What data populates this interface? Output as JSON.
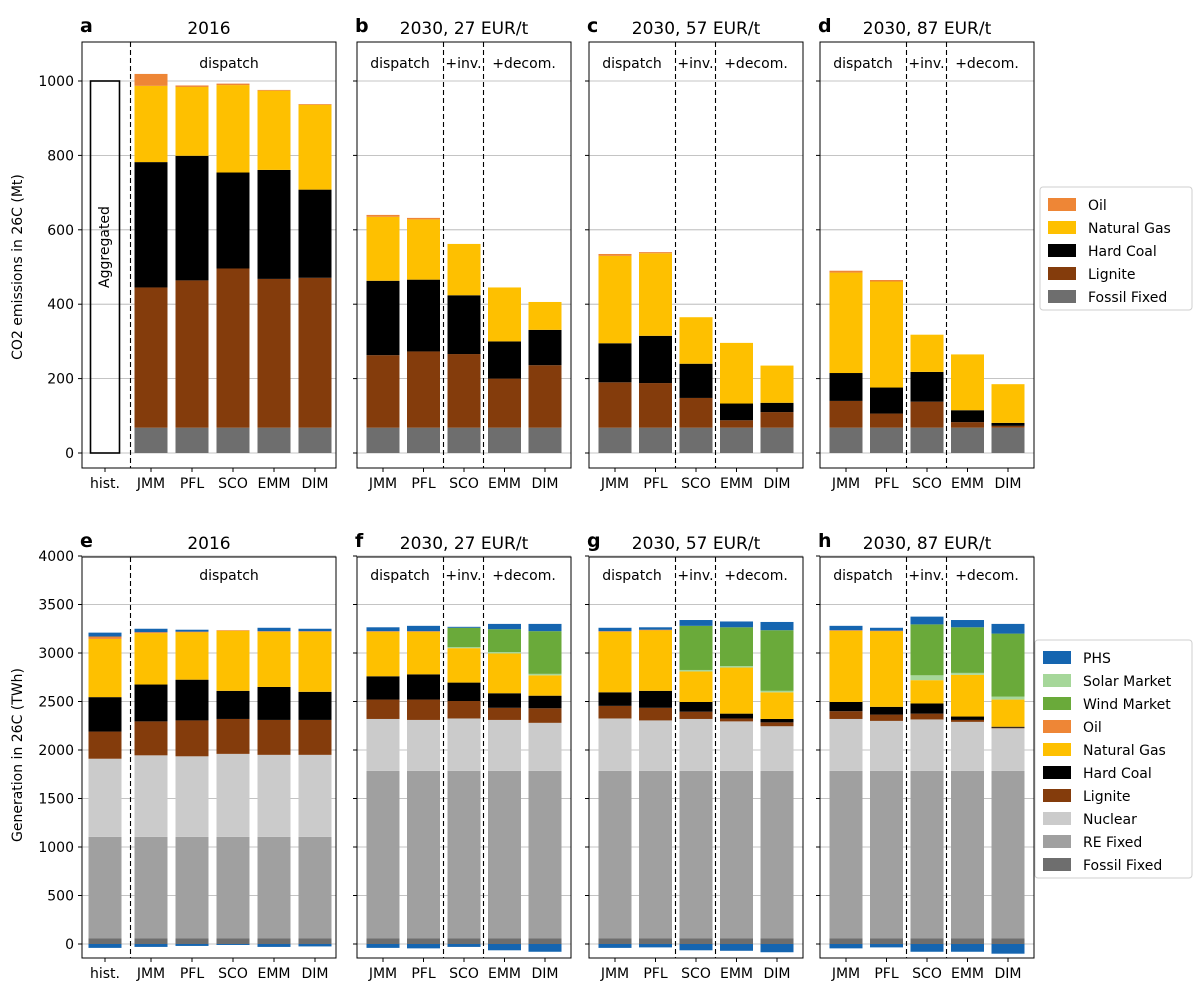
{
  "figure": {
    "top_ylabel": "CO2 emissions in 26C (Mt)",
    "bottom_ylabel": "Generation in 26C (TWh)"
  },
  "colors": {
    "PHS": "#1565b0",
    "Solar Market": "#a6d79a",
    "Wind Market": "#6aaa3a",
    "Oil": "#ee8636",
    "Natural Gas": "#fec000",
    "Hard Coal": "#000000",
    "Lignite": "#843c0c",
    "Nuclear": "#cbcbcb",
    "RE Fixed": "#a0a0a0",
    "Fossil Fixed": "#6e6e6e"
  },
  "legends": {
    "top": [
      "Oil",
      "Natural Gas",
      "Hard Coal",
      "Lignite",
      "Fossil Fixed"
    ],
    "bottom": [
      "PHS",
      "Solar Market",
      "Wind Market",
      "Oil",
      "Natural Gas",
      "Hard Coal",
      "Lignite",
      "Nuclear",
      "RE Fixed",
      "Fossil Fixed"
    ]
  },
  "chart_data": [
    {
      "type": "bar",
      "stacked": true,
      "letter": "a",
      "title": "2016",
      "ylabel": "CO2 emissions in 26C (Mt)",
      "ylim": [
        0,
        1100
      ],
      "yticks": [
        0,
        200,
        400,
        600,
        800,
        1000
      ],
      "grid": true,
      "legend": "right",
      "categories": [
        "hist.",
        "JMM",
        "PFL",
        "SCO",
        "EMM",
        "DIM"
      ],
      "section_labels": [
        "dispatch"
      ],
      "hist_bar": {
        "label": "Aggregated",
        "value": 1000
      },
      "series": [
        {
          "name": "Fossil Fixed",
          "values": [
            null,
            68,
            68,
            68,
            68,
            68
          ]
        },
        {
          "name": "Lignite",
          "values": [
            null,
            377,
            396,
            428,
            400,
            403
          ]
        },
        {
          "name": "Hard Coal",
          "values": [
            null,
            337,
            335,
            258,
            293,
            237
          ]
        },
        {
          "name": "Natural Gas",
          "values": [
            null,
            205,
            185,
            235,
            213,
            228
          ]
        },
        {
          "name": "Oil",
          "values": [
            null,
            32,
            4,
            4,
            2,
            2
          ]
        }
      ]
    },
    {
      "type": "bar",
      "stacked": true,
      "letter": "b",
      "title": "2030, 27 EUR/t",
      "ylim": [
        0,
        1100
      ],
      "yticks": [
        0,
        200,
        400,
        600,
        800,
        1000
      ],
      "grid": true,
      "categories": [
        "JMM",
        "PFL",
        "SCO",
        "EMM",
        "DIM"
      ],
      "section_labels": [
        "dispatch",
        "+inv.",
        "+decom."
      ],
      "series": [
        {
          "name": "Fossil Fixed",
          "values": [
            68,
            68,
            68,
            68,
            68
          ]
        },
        {
          "name": "Lignite",
          "values": [
            195,
            205,
            198,
            132,
            168
          ]
        },
        {
          "name": "Hard Coal",
          "values": [
            200,
            193,
            158,
            100,
            95
          ]
        },
        {
          "name": "Natural Gas",
          "values": [
            172,
            162,
            138,
            145,
            75
          ]
        },
        {
          "name": "Oil",
          "values": [
            5,
            4,
            0,
            0,
            0
          ]
        }
      ]
    },
    {
      "type": "bar",
      "stacked": true,
      "letter": "c",
      "title": "2030, 57 EUR/t",
      "ylim": [
        0,
        1100
      ],
      "yticks": [
        0,
        200,
        400,
        600,
        800,
        1000
      ],
      "grid": true,
      "categories": [
        "JMM",
        "PFL",
        "SCO",
        "EMM",
        "DIM"
      ],
      "section_labels": [
        "dispatch",
        "+inv.",
        "+decom."
      ],
      "series": [
        {
          "name": "Fossil Fixed",
          "values": [
            68,
            68,
            68,
            68,
            68
          ]
        },
        {
          "name": "Lignite",
          "values": [
            122,
            120,
            80,
            20,
            42
          ]
        },
        {
          "name": "Hard Coal",
          "values": [
            105,
            127,
            92,
            45,
            25
          ]
        },
        {
          "name": "Natural Gas",
          "values": [
            235,
            222,
            125,
            163,
            100
          ]
        },
        {
          "name": "Oil",
          "values": [
            5,
            3,
            0,
            0,
            0
          ]
        }
      ]
    },
    {
      "type": "bar",
      "stacked": true,
      "letter": "d",
      "title": "2030, 87 EUR/t",
      "ylim": [
        0,
        1100
      ],
      "yticks": [
        0,
        200,
        400,
        600,
        800,
        1000
      ],
      "grid": true,
      "categories": [
        "JMM",
        "PFL",
        "SCO",
        "EMM",
        "DIM"
      ],
      "section_labels": [
        "dispatch",
        "+inv.",
        "+decom."
      ],
      "series": [
        {
          "name": "Fossil Fixed",
          "values": [
            68,
            68,
            68,
            68,
            68
          ]
        },
        {
          "name": "Lignite",
          "values": [
            72,
            38,
            70,
            15,
            5
          ]
        },
        {
          "name": "Hard Coal",
          "values": [
            75,
            70,
            80,
            32,
            8
          ]
        },
        {
          "name": "Natural Gas",
          "values": [
            270,
            285,
            100,
            150,
            104
          ]
        },
        {
          "name": "Oil",
          "values": [
            5,
            4,
            0,
            0,
            0
          ]
        }
      ]
    },
    {
      "type": "bar",
      "stacked": true,
      "letter": "e",
      "title": "2016",
      "ylabel": "Generation in 26C (TWh)",
      "ylim": [
        -150,
        4000
      ],
      "yticks": [
        0,
        500,
        1000,
        1500,
        2000,
        2500,
        3000,
        3500,
        4000
      ],
      "grid": true,
      "legend": "right",
      "categories": [
        "hist.",
        "JMM",
        "PFL",
        "SCO",
        "EMM",
        "DIM"
      ],
      "section_labels": [
        "dispatch"
      ],
      "series": [
        {
          "name": "Fossil Fixed",
          "values": [
            60,
            60,
            60,
            60,
            60,
            60
          ]
        },
        {
          "name": "RE Fixed",
          "values": [
            1045,
            1045,
            1045,
            1045,
            1045,
            1045
          ]
        },
        {
          "name": "Nuclear",
          "values": [
            805,
            840,
            830,
            855,
            845,
            845
          ]
        },
        {
          "name": "Lignite",
          "values": [
            280,
            350,
            370,
            360,
            360,
            360
          ]
        },
        {
          "name": "Hard Coal",
          "values": [
            355,
            380,
            420,
            290,
            340,
            290
          ]
        },
        {
          "name": "Natural Gas",
          "values": [
            600,
            530,
            490,
            620,
            570,
            620
          ]
        },
        {
          "name": "Oil",
          "values": [
            25,
            10,
            5,
            5,
            5,
            5
          ]
        },
        {
          "name": "Solar Market",
          "values": [
            0,
            0,
            0,
            0,
            0,
            0
          ]
        },
        {
          "name": "Wind Market",
          "values": [
            0,
            0,
            0,
            0,
            0,
            0
          ]
        },
        {
          "name": "PHS",
          "values": [
            40,
            35,
            20,
            0,
            35,
            25
          ]
        },
        {
          "name": "PHS",
          "values": [
            -40,
            -30,
            -20,
            -10,
            -30,
            -25
          ]
        }
      ]
    },
    {
      "type": "bar",
      "stacked": true,
      "letter": "f",
      "title": "2030, 27 EUR/t",
      "ylim": [
        -150,
        4000
      ],
      "yticks": [
        0,
        500,
        1000,
        1500,
        2000,
        2500,
        3000,
        3500,
        4000
      ],
      "grid": true,
      "categories": [
        "JMM",
        "PFL",
        "SCO",
        "EMM",
        "DIM"
      ],
      "section_labels": [
        "dispatch",
        "+inv.",
        "+decom."
      ],
      "series": [
        {
          "name": "Fossil Fixed",
          "values": [
            60,
            60,
            60,
            60,
            60
          ]
        },
        {
          "name": "RE Fixed",
          "values": [
            1725,
            1725,
            1725,
            1725,
            1725
          ]
        },
        {
          "name": "Nuclear",
          "values": [
            535,
            525,
            540,
            525,
            495
          ]
        },
        {
          "name": "Lignite",
          "values": [
            200,
            210,
            180,
            125,
            150
          ]
        },
        {
          "name": "Hard Coal",
          "values": [
            240,
            260,
            190,
            150,
            130
          ]
        },
        {
          "name": "Natural Gas",
          "values": [
            460,
            440,
            355,
            410,
            210
          ]
        },
        {
          "name": "Oil",
          "values": [
            5,
            5,
            0,
            0,
            0
          ]
        },
        {
          "name": "Solar Market",
          "values": [
            0,
            0,
            10,
            15,
            15
          ]
        },
        {
          "name": "Wind Market",
          "values": [
            0,
            0,
            200,
            235,
            440
          ]
        },
        {
          "name": "PHS",
          "values": [
            40,
            55,
            10,
            55,
            75
          ]
        },
        {
          "name": "PHS",
          "values": [
            -40,
            -45,
            -30,
            -65,
            -80
          ]
        }
      ]
    },
    {
      "type": "bar",
      "stacked": true,
      "letter": "g",
      "title": "2030, 57 EUR/t",
      "ylim": [
        -150,
        4000
      ],
      "yticks": [
        0,
        500,
        1000,
        1500,
        2000,
        2500,
        3000,
        3500,
        4000
      ],
      "grid": true,
      "categories": [
        "JMM",
        "PFL",
        "SCO",
        "EMM",
        "DIM"
      ],
      "section_labels": [
        "dispatch",
        "+inv.",
        "+decom."
      ],
      "series": [
        {
          "name": "Fossil Fixed",
          "values": [
            60,
            60,
            60,
            60,
            60
          ]
        },
        {
          "name": "RE Fixed",
          "values": [
            1725,
            1725,
            1725,
            1725,
            1725
          ]
        },
        {
          "name": "Nuclear",
          "values": [
            540,
            520,
            535,
            510,
            460
          ]
        },
        {
          "name": "Lignite",
          "values": [
            130,
            130,
            75,
            30,
            40
          ]
        },
        {
          "name": "Hard Coal",
          "values": [
            140,
            175,
            100,
            50,
            35
          ]
        },
        {
          "name": "Natural Gas",
          "values": [
            625,
            625,
            315,
            475,
            275
          ]
        },
        {
          "name": "Oil",
          "values": [
            5,
            5,
            0,
            0,
            0
          ]
        },
        {
          "name": "Solar Market",
          "values": [
            0,
            0,
            15,
            15,
            15
          ]
        },
        {
          "name": "Wind Market",
          "values": [
            0,
            0,
            455,
            400,
            625
          ]
        },
        {
          "name": "PHS",
          "values": [
            35,
            25,
            60,
            60,
            85
          ]
        },
        {
          "name": "PHS",
          "values": [
            -40,
            -35,
            -65,
            -70,
            -85
          ]
        }
      ]
    },
    {
      "type": "bar",
      "stacked": true,
      "letter": "h",
      "title": "2030, 87 EUR/t",
      "ylim": [
        -150,
        4000
      ],
      "yticks": [
        0,
        500,
        1000,
        1500,
        2000,
        2500,
        3000,
        3500,
        4000
      ],
      "grid": true,
      "categories": [
        "JMM",
        "PFL",
        "SCO",
        "EMM",
        "DIM"
      ],
      "section_labels": [
        "dispatch",
        "+inv.",
        "+decom."
      ],
      "series": [
        {
          "name": "Fossil Fixed",
          "values": [
            60,
            60,
            60,
            60,
            60
          ]
        },
        {
          "name": "RE Fixed",
          "values": [
            1725,
            1725,
            1725,
            1725,
            1725
          ]
        },
        {
          "name": "Nuclear",
          "values": [
            535,
            515,
            530,
            505,
            440
          ]
        },
        {
          "name": "Lignite",
          "values": [
            80,
            65,
            60,
            20,
            5
          ]
        },
        {
          "name": "Hard Coal",
          "values": [
            95,
            80,
            105,
            35,
            10
          ]
        },
        {
          "name": "Natural Gas",
          "values": [
            735,
            780,
            240,
            430,
            280
          ]
        },
        {
          "name": "Oil",
          "values": [
            5,
            5,
            0,
            0,
            0
          ]
        },
        {
          "name": "Solar Market",
          "values": [
            0,
            0,
            50,
            20,
            30
          ]
        },
        {
          "name": "Wind Market",
          "values": [
            0,
            0,
            525,
            470,
            650
          ]
        },
        {
          "name": "PHS",
          "values": [
            45,
            30,
            80,
            75,
            100
          ]
        },
        {
          "name": "PHS",
          "values": [
            -45,
            -35,
            -80,
            -80,
            -100
          ]
        }
      ]
    }
  ]
}
